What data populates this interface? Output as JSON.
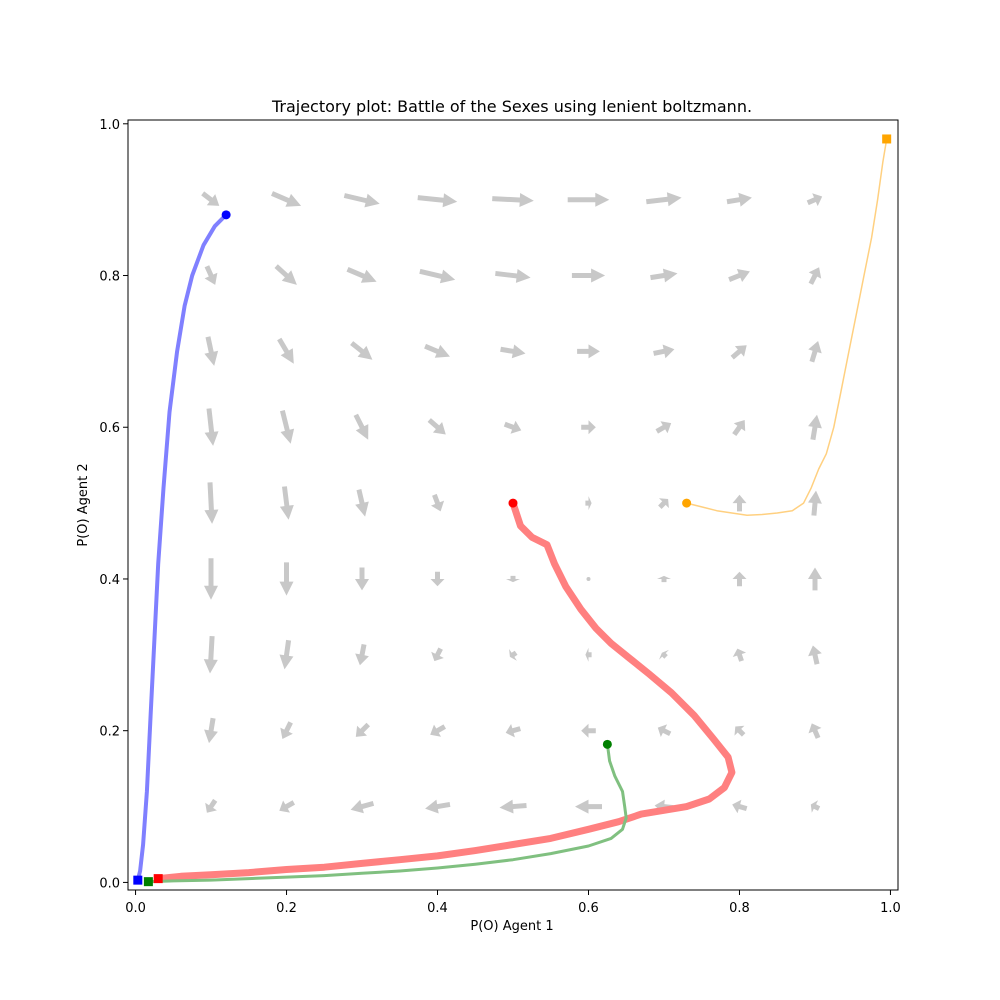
{
  "chart_data": {
    "type": "line",
    "title": "Trajectory plot: Battle of the Sexes using lenient boltzmann.",
    "xlabel": "P(O) Agent 1",
    "ylabel": "P(O) Agent 2",
    "xlim": [
      -0.01,
      1.01
    ],
    "ylim": [
      -0.01,
      1.005
    ],
    "xticks": [
      "0.0",
      "0.2",
      "0.4",
      "0.6",
      "0.8",
      "1.0"
    ],
    "yticks": [
      "0.0",
      "0.2",
      "0.4",
      "0.6",
      "0.8",
      "1.0"
    ],
    "grid": false,
    "vector_field": {
      "color": "#c8c8c8",
      "grid_x": [
        0.1,
        0.2,
        0.3,
        0.4,
        0.5,
        0.6,
        0.7,
        0.8,
        0.9
      ],
      "grid_y": [
        0.1,
        0.2,
        0.3,
        0.4,
        0.5,
        0.6,
        0.7,
        0.8,
        0.9
      ],
      "scale": 0.55,
      "vectors": [
        {
          "x": 0.1,
          "y": 0.9,
          "dx": 0.04,
          "dy": -0.03
        },
        {
          "x": 0.2,
          "y": 0.9,
          "dx": 0.07,
          "dy": -0.03
        },
        {
          "x": 0.3,
          "y": 0.9,
          "dx": 0.085,
          "dy": -0.02
        },
        {
          "x": 0.4,
          "y": 0.9,
          "dx": 0.095,
          "dy": -0.01
        },
        {
          "x": 0.5,
          "y": 0.9,
          "dx": 0.1,
          "dy": -0.005
        },
        {
          "x": 0.6,
          "y": 0.9,
          "dx": 0.1,
          "dy": 0.0
        },
        {
          "x": 0.7,
          "y": 0.9,
          "dx": 0.085,
          "dy": 0.01
        },
        {
          "x": 0.8,
          "y": 0.9,
          "dx": 0.06,
          "dy": 0.01
        },
        {
          "x": 0.9,
          "y": 0.9,
          "dx": 0.035,
          "dy": 0.015
        },
        {
          "x": 0.1,
          "y": 0.8,
          "dx": 0.02,
          "dy": -0.045
        },
        {
          "x": 0.2,
          "y": 0.8,
          "dx": 0.05,
          "dy": -0.045
        },
        {
          "x": 0.3,
          "y": 0.8,
          "dx": 0.07,
          "dy": -0.03
        },
        {
          "x": 0.4,
          "y": 0.8,
          "dx": 0.085,
          "dy": -0.02
        },
        {
          "x": 0.5,
          "y": 0.8,
          "dx": 0.085,
          "dy": -0.01
        },
        {
          "x": 0.6,
          "y": 0.8,
          "dx": 0.08,
          "dy": 0.0
        },
        {
          "x": 0.7,
          "y": 0.8,
          "dx": 0.065,
          "dy": 0.01
        },
        {
          "x": 0.8,
          "y": 0.8,
          "dx": 0.05,
          "dy": 0.02
        },
        {
          "x": 0.9,
          "y": 0.8,
          "dx": 0.02,
          "dy": 0.04
        },
        {
          "x": 0.1,
          "y": 0.7,
          "dx": 0.015,
          "dy": -0.07
        },
        {
          "x": 0.2,
          "y": 0.7,
          "dx": 0.035,
          "dy": -0.06
        },
        {
          "x": 0.3,
          "y": 0.7,
          "dx": 0.05,
          "dy": -0.04
        },
        {
          "x": 0.4,
          "y": 0.7,
          "dx": 0.06,
          "dy": -0.025
        },
        {
          "x": 0.5,
          "y": 0.7,
          "dx": 0.06,
          "dy": -0.01
        },
        {
          "x": 0.6,
          "y": 0.7,
          "dx": 0.055,
          "dy": 0.0
        },
        {
          "x": 0.7,
          "y": 0.7,
          "dx": 0.05,
          "dy": 0.01
        },
        {
          "x": 0.8,
          "y": 0.7,
          "dx": 0.035,
          "dy": 0.03
        },
        {
          "x": 0.9,
          "y": 0.7,
          "dx": 0.015,
          "dy": 0.05
        },
        {
          "x": 0.1,
          "y": 0.6,
          "dx": 0.01,
          "dy": -0.09
        },
        {
          "x": 0.2,
          "y": 0.6,
          "dx": 0.02,
          "dy": -0.08
        },
        {
          "x": 0.3,
          "y": 0.6,
          "dx": 0.03,
          "dy": -0.06
        },
        {
          "x": 0.4,
          "y": 0.6,
          "dx": 0.04,
          "dy": -0.035
        },
        {
          "x": 0.5,
          "y": 0.6,
          "dx": 0.04,
          "dy": -0.015
        },
        {
          "x": 0.6,
          "y": 0.6,
          "dx": 0.035,
          "dy": 0.0
        },
        {
          "x": 0.7,
          "y": 0.6,
          "dx": 0.035,
          "dy": 0.02
        },
        {
          "x": 0.8,
          "y": 0.6,
          "dx": 0.025,
          "dy": 0.035
        },
        {
          "x": 0.9,
          "y": 0.6,
          "dx": 0.01,
          "dy": 0.06
        },
        {
          "x": 0.1,
          "y": 0.5,
          "dx": 0.005,
          "dy": -0.1
        },
        {
          "x": 0.2,
          "y": 0.5,
          "dx": 0.01,
          "dy": -0.08
        },
        {
          "x": 0.3,
          "y": 0.5,
          "dx": 0.015,
          "dy": -0.065
        },
        {
          "x": 0.4,
          "y": 0.5,
          "dx": 0.015,
          "dy": -0.04
        },
        {
          "x": 0.5,
          "y": 0.5,
          "dx": 0.0,
          "dy": 0.0
        },
        {
          "x": 0.6,
          "y": 0.5,
          "dx": 0.015,
          "dy": 0.0
        },
        {
          "x": 0.7,
          "y": 0.5,
          "dx": 0.02,
          "dy": 0.02
        },
        {
          "x": 0.8,
          "y": 0.5,
          "dx": 0.0,
          "dy": 0.04
        },
        {
          "x": 0.9,
          "y": 0.5,
          "dx": 0.005,
          "dy": 0.06
        },
        {
          "x": 0.1,
          "y": 0.4,
          "dx": 0.0,
          "dy": -0.1
        },
        {
          "x": 0.2,
          "y": 0.4,
          "dx": 0.0,
          "dy": -0.08
        },
        {
          "x": 0.3,
          "y": 0.4,
          "dx": 0.0,
          "dy": -0.055
        },
        {
          "x": 0.4,
          "y": 0.4,
          "dx": 0.0,
          "dy": -0.035
        },
        {
          "x": 0.5,
          "y": 0.4,
          "dx": 0.0,
          "dy": -0.015
        },
        {
          "x": 0.6,
          "y": 0.4,
          "dx": 0.0,
          "dy": 0.0
        },
        {
          "x": 0.7,
          "y": 0.4,
          "dx": 0.0,
          "dy": 0.015
        },
        {
          "x": 0.8,
          "y": 0.4,
          "dx": 0.0,
          "dy": 0.035
        },
        {
          "x": 0.9,
          "y": 0.4,
          "dx": 0.0,
          "dy": 0.055
        },
        {
          "x": 0.1,
          "y": 0.3,
          "dx": -0.005,
          "dy": -0.09
        },
        {
          "x": 0.2,
          "y": 0.3,
          "dx": -0.01,
          "dy": -0.07
        },
        {
          "x": 0.3,
          "y": 0.3,
          "dx": -0.01,
          "dy": -0.05
        },
        {
          "x": 0.4,
          "y": 0.3,
          "dx": -0.015,
          "dy": -0.03
        },
        {
          "x": 0.5,
          "y": 0.3,
          "dx": -0.015,
          "dy": -0.01
        },
        {
          "x": 0.6,
          "y": 0.3,
          "dx": -0.015,
          "dy": 0.0
        },
        {
          "x": 0.7,
          "y": 0.3,
          "dx": -0.01,
          "dy": 0.01
        },
        {
          "x": 0.8,
          "y": 0.3,
          "dx": -0.01,
          "dy": 0.03
        },
        {
          "x": 0.9,
          "y": 0.3,
          "dx": -0.01,
          "dy": 0.045
        },
        {
          "x": 0.1,
          "y": 0.2,
          "dx": -0.01,
          "dy": -0.06
        },
        {
          "x": 0.2,
          "y": 0.2,
          "dx": -0.02,
          "dy": -0.04
        },
        {
          "x": 0.3,
          "y": 0.2,
          "dx": -0.03,
          "dy": -0.03
        },
        {
          "x": 0.4,
          "y": 0.2,
          "dx": -0.035,
          "dy": -0.02
        },
        {
          "x": 0.5,
          "y": 0.2,
          "dx": -0.035,
          "dy": -0.01
        },
        {
          "x": 0.6,
          "y": 0.2,
          "dx": -0.035,
          "dy": 0.0
        },
        {
          "x": 0.7,
          "y": 0.2,
          "dx": -0.03,
          "dy": 0.015
        },
        {
          "x": 0.8,
          "y": 0.2,
          "dx": -0.02,
          "dy": 0.02
        },
        {
          "x": 0.9,
          "y": 0.2,
          "dx": -0.015,
          "dy": 0.035
        },
        {
          "x": 0.1,
          "y": 0.1,
          "dx": -0.02,
          "dy": -0.03
        },
        {
          "x": 0.2,
          "y": 0.1,
          "dx": -0.035,
          "dy": -0.02
        },
        {
          "x": 0.3,
          "y": 0.1,
          "dx": -0.055,
          "dy": -0.015
        },
        {
          "x": 0.4,
          "y": 0.1,
          "dx": -0.06,
          "dy": -0.01
        },
        {
          "x": 0.5,
          "y": 0.1,
          "dx": -0.065,
          "dy": -0.005
        },
        {
          "x": 0.6,
          "y": 0.1,
          "dx": -0.065,
          "dy": 0.0
        },
        {
          "x": 0.7,
          "y": 0.1,
          "dx": -0.045,
          "dy": 0.005
        },
        {
          "x": 0.8,
          "y": 0.1,
          "dx": -0.035,
          "dy": 0.01
        },
        {
          "x": 0.9,
          "y": 0.1,
          "dx": -0.02,
          "dy": 0.01
        }
      ]
    },
    "series": [
      {
        "color": "#8080ff",
        "stroke_width": 4,
        "start": [
          0.12,
          0.88
        ],
        "end": [
          0.003,
          0.003
        ],
        "points": [
          [
            0.12,
            0.88
          ],
          [
            0.105,
            0.865
          ],
          [
            0.09,
            0.84
          ],
          [
            0.075,
            0.8
          ],
          [
            0.065,
            0.76
          ],
          [
            0.055,
            0.7
          ],
          [
            0.045,
            0.62
          ],
          [
            0.037,
            0.52
          ],
          [
            0.03,
            0.42
          ],
          [
            0.025,
            0.32
          ],
          [
            0.02,
            0.22
          ],
          [
            0.015,
            0.12
          ],
          [
            0.01,
            0.05
          ],
          [
            0.006,
            0.015
          ],
          [
            0.003,
            0.003
          ]
        ]
      },
      {
        "color": "#ff8080",
        "stroke_width": 7,
        "start": [
          0.5,
          0.5
        ],
        "end": [
          0.03,
          0.005
        ],
        "points": [
          [
            0.5,
            0.5
          ],
          [
            0.51,
            0.47
          ],
          [
            0.525,
            0.455
          ],
          [
            0.545,
            0.445
          ],
          [
            0.555,
            0.42
          ],
          [
            0.57,
            0.39
          ],
          [
            0.59,
            0.36
          ],
          [
            0.61,
            0.335
          ],
          [
            0.63,
            0.315
          ],
          [
            0.655,
            0.295
          ],
          [
            0.68,
            0.275
          ],
          [
            0.71,
            0.25
          ],
          [
            0.74,
            0.22
          ],
          [
            0.765,
            0.19
          ],
          [
            0.785,
            0.165
          ],
          [
            0.79,
            0.145
          ],
          [
            0.78,
            0.125
          ],
          [
            0.76,
            0.11
          ],
          [
            0.73,
            0.1
          ],
          [
            0.7,
            0.095
          ],
          [
            0.67,
            0.09
          ],
          [
            0.64,
            0.08
          ],
          [
            0.6,
            0.07
          ],
          [
            0.55,
            0.058
          ],
          [
            0.5,
            0.05
          ],
          [
            0.45,
            0.042
          ],
          [
            0.4,
            0.035
          ],
          [
            0.35,
            0.03
          ],
          [
            0.3,
            0.025
          ],
          [
            0.25,
            0.02
          ],
          [
            0.2,
            0.017
          ],
          [
            0.15,
            0.013
          ],
          [
            0.1,
            0.01
          ],
          [
            0.06,
            0.008
          ],
          [
            0.03,
            0.005
          ]
        ]
      },
      {
        "color": "#80c080",
        "stroke_width": 3,
        "start": [
          0.625,
          0.182
        ],
        "end": [
          0.017,
          0.001
        ],
        "points": [
          [
            0.625,
            0.182
          ],
          [
            0.628,
            0.16
          ],
          [
            0.635,
            0.14
          ],
          [
            0.645,
            0.12
          ],
          [
            0.648,
            0.1
          ],
          [
            0.65,
            0.085
          ],
          [
            0.645,
            0.07
          ],
          [
            0.63,
            0.058
          ],
          [
            0.6,
            0.048
          ],
          [
            0.55,
            0.038
          ],
          [
            0.5,
            0.03
          ],
          [
            0.45,
            0.024
          ],
          [
            0.4,
            0.019
          ],
          [
            0.35,
            0.015
          ],
          [
            0.3,
            0.012
          ],
          [
            0.25,
            0.009
          ],
          [
            0.2,
            0.007
          ],
          [
            0.15,
            0.005
          ],
          [
            0.1,
            0.003
          ],
          [
            0.05,
            0.002
          ],
          [
            0.017,
            0.001
          ]
        ]
      },
      {
        "color": "#ffd080",
        "stroke_width": 1.5,
        "start": [
          0.73,
          0.5
        ],
        "end": [
          0.995,
          0.98
        ],
        "points": [
          [
            0.73,
            0.5
          ],
          [
            0.75,
            0.495
          ],
          [
            0.77,
            0.49
          ],
          [
            0.79,
            0.487
          ],
          [
            0.81,
            0.484
          ],
          [
            0.83,
            0.485
          ],
          [
            0.85,
            0.487
          ],
          [
            0.87,
            0.49
          ],
          [
            0.885,
            0.5
          ],
          [
            0.895,
            0.52
          ],
          [
            0.905,
            0.545
          ],
          [
            0.915,
            0.565
          ],
          [
            0.925,
            0.6
          ],
          [
            0.935,
            0.65
          ],
          [
            0.945,
            0.7
          ],
          [
            0.955,
            0.75
          ],
          [
            0.965,
            0.8
          ],
          [
            0.975,
            0.85
          ],
          [
            0.983,
            0.9
          ],
          [
            0.99,
            0.95
          ],
          [
            0.995,
            0.98
          ]
        ]
      }
    ],
    "marker_colors": {
      "blue": "#0000ff",
      "red": "#ff0000",
      "green": "#008000",
      "orange": "#ffa500"
    }
  }
}
